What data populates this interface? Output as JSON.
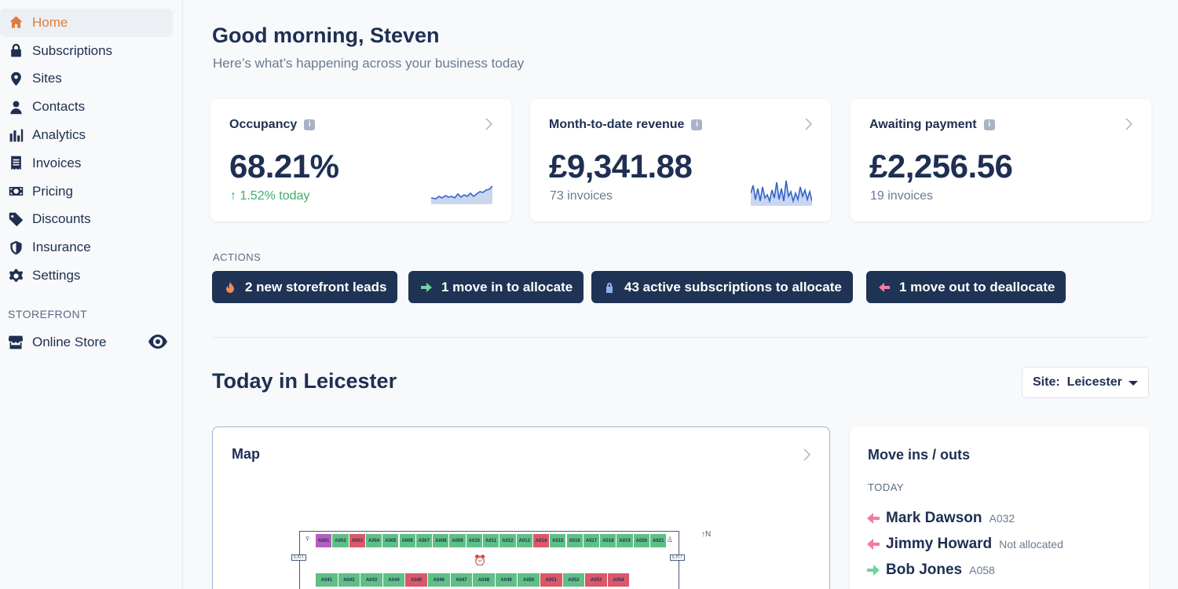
{
  "sidebar": {
    "items": [
      {
        "label": "Home",
        "icon": "home-icon",
        "active": true
      },
      {
        "label": "Subscriptions",
        "icon": "lock-icon"
      },
      {
        "label": "Sites",
        "icon": "location-pin-icon"
      },
      {
        "label": "Contacts",
        "icon": "user-icon"
      },
      {
        "label": "Analytics",
        "icon": "bar-chart-icon"
      },
      {
        "label": "Invoices",
        "icon": "receipt-icon"
      },
      {
        "label": "Pricing",
        "icon": "money-icon"
      },
      {
        "label": "Discounts",
        "icon": "tag-icon"
      },
      {
        "label": "Insurance",
        "icon": "shield-icon"
      },
      {
        "label": "Settings",
        "icon": "gear-icon"
      }
    ],
    "section_title": "STOREFRONT",
    "store_item": {
      "label": "Online Store",
      "icon": "store-icon"
    }
  },
  "header": {
    "greeting": "Good morning, Steven",
    "subtitle": "Here’s what’s happening across your business today"
  },
  "cards": [
    {
      "title": "Occupancy",
      "value": "68.21%",
      "sub": "↑ 1.52% today"
    },
    {
      "title": "Month-to-date revenue",
      "value": "£9,341.88",
      "sub": "73 invoices"
    },
    {
      "title": "Awaiting payment",
      "value": "£2,256.56",
      "sub": "19 invoices"
    }
  ],
  "actions": {
    "title": "ACTIONS",
    "buttons": [
      {
        "label": "2 new storefront leads",
        "icon": "flame-icon"
      },
      {
        "label": "1 move in to allocate",
        "icon": "arrow-right-icon"
      },
      {
        "label": "43 active subscriptions to allocate",
        "icon": "lock-icon"
      },
      {
        "label": "1 move out to deallocate",
        "icon": "arrow-left-icon"
      }
    ]
  },
  "today": {
    "title": "Today in Leicester",
    "site_label": "Site:",
    "site_value": "Leicester"
  },
  "map": {
    "title": "Map",
    "row1": [
      "A001",
      "A002",
      "A003",
      "A004",
      "A005",
      "A006",
      "A007",
      "A008",
      "A009",
      "A010",
      "A011",
      "A012",
      "A013",
      "A014",
      "A015",
      "A016",
      "A017",
      "A018",
      "A019",
      "A020",
      "A021"
    ],
    "row1_status": [
      "purple",
      "green",
      "red",
      "green",
      "green",
      "green",
      "green",
      "green",
      "green",
      "green",
      "green",
      "green",
      "green",
      "red",
      "green",
      "green",
      "green",
      "green",
      "green",
      "green",
      "green"
    ],
    "row2": [
      "A041",
      "A042",
      "A043",
      "A044",
      "A045",
      "A046",
      "A047",
      "A048",
      "A049",
      "A050",
      "A051",
      "A052",
      "A053",
      "A054"
    ],
    "row2_status": [
      "green",
      "green",
      "green",
      "green",
      "red",
      "green",
      "green",
      "green",
      "green",
      "green",
      "red",
      "green",
      "red",
      "red"
    ],
    "exit_label": "EXIT",
    "north_label": "N"
  },
  "moves": {
    "title": "Move ins / outs",
    "today_label": "TODAY",
    "rows": [
      {
        "name": "Mark Dawson",
        "unit": "A032",
        "direction": "out"
      },
      {
        "name": "Jimmy Howard",
        "unit": "Not allocated",
        "direction": "out"
      },
      {
        "name": "Bob Jones",
        "unit": "A058",
        "direction": "in"
      }
    ]
  },
  "colors": {
    "accent": "#e07b3f",
    "navy": "#1f3355",
    "positive": "#3fae6a",
    "unit_green": "#5fbf86",
    "unit_red": "#d9596b",
    "unit_purple": "#b35fc0"
  }
}
